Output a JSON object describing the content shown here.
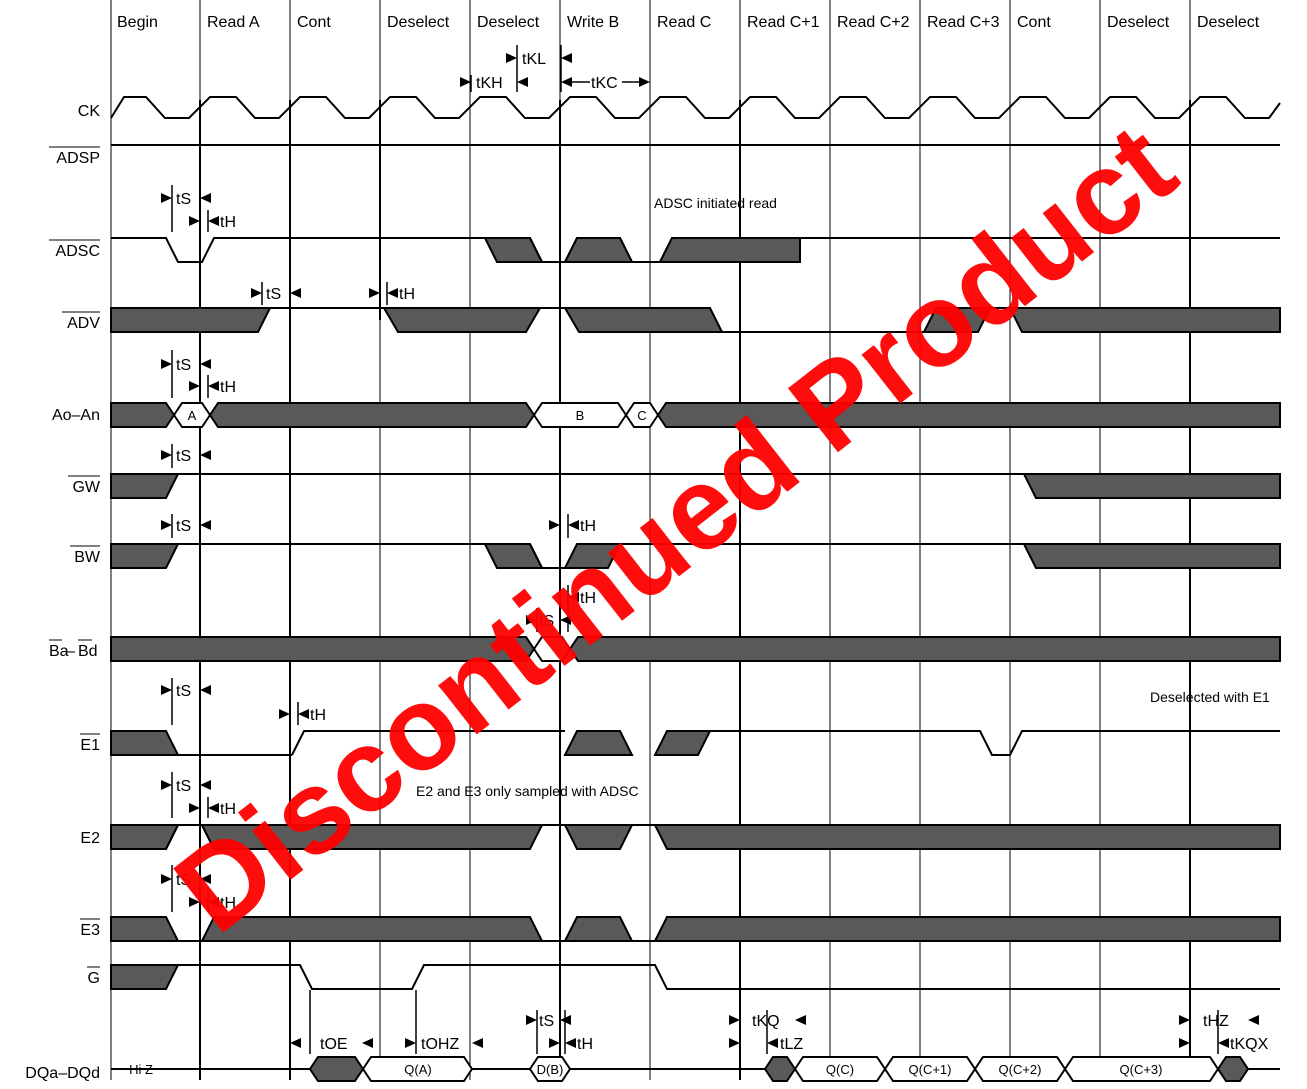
{
  "cycles": [
    "Begin",
    "Read A",
    "Cont",
    "Deselect",
    "Deselect",
    "Write B",
    "Read C",
    "Read C+1",
    "Read C+2",
    "Read C+3",
    "Cont",
    "Deselect",
    "Deselect"
  ],
  "signals": {
    "ck": "CK",
    "adsp": "ADSP",
    "adsc": "ADSC",
    "adv": "ADV",
    "addr": "Ao–An",
    "gw": "GW",
    "bw": "BW",
    "ba": "Ba",
    "ba_dash": "–",
    "bd": "Bd",
    "e1": "E1",
    "e2": "E2",
    "e3": "E3",
    "g": "G",
    "dq": "DQa–DQd"
  },
  "timing_labels": {
    "tkl": "tKL",
    "tkh": "tKH",
    "tkc": "tKC",
    "ts": "tS",
    "th": "tH",
    "toe": "tOE",
    "tohz": "tOHZ",
    "tkq": "tKQ",
    "tlz": "tLZ",
    "thz": "tHZ",
    "tkqx": "tKQX"
  },
  "notes": {
    "adsc_read": "ADSC initiated read",
    "e1_desel": "Deselected with E1",
    "e2e3": "E2 and E3 only sampled with ADSC",
    "hiz": "Hi Z"
  },
  "bus_values": {
    "a": "A",
    "b": "B",
    "c": "C",
    "qa": "Q(A)",
    "db": "D(B)",
    "qc": "Q(C)",
    "qc1": "Q(C+1)",
    "qc2": "Q(C+2)",
    "qc3": "Q(C+3)"
  },
  "watermark": "Discontinued Product",
  "colors": {
    "fill": "#595959",
    "line": "#000000",
    "watermark": "#ff0000"
  }
}
